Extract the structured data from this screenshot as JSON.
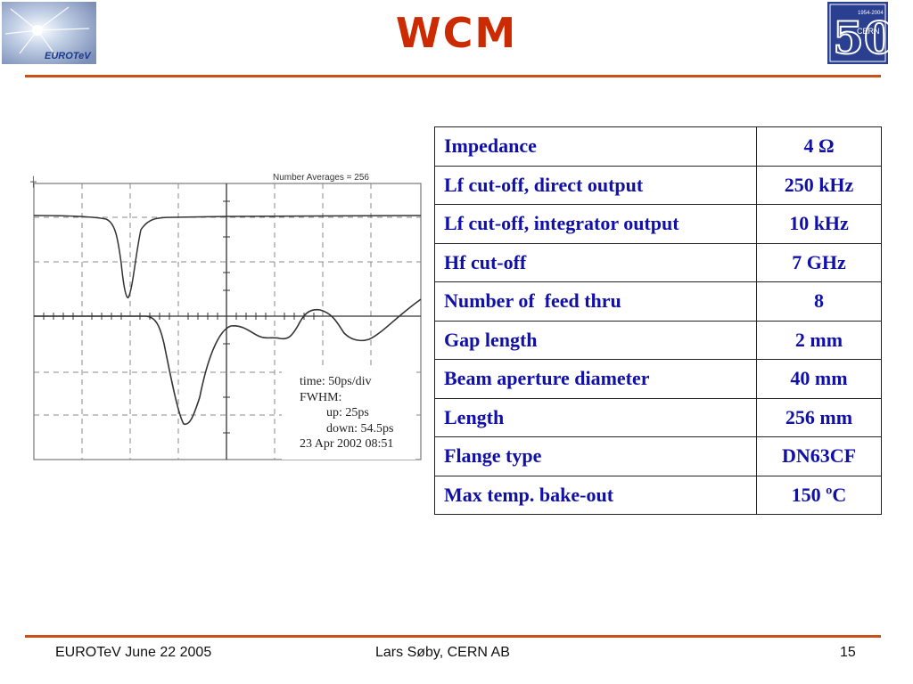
{
  "header": {
    "title": "WCM",
    "left_logo_text": "EUROTeV",
    "right_logo_text": "CERN",
    "right_logo_years": "1954-2004",
    "right_logo_number": "50"
  },
  "scope": {
    "annotation": "Number Averages = 256",
    "caption": {
      "time": "time: 50ps/div",
      "fwhm": "FWHM:",
      "up": "up: 25ps",
      "down": "down: 54.5ps",
      "date": "23 Apr 2002 08:51"
    }
  },
  "specs": [
    {
      "param": "Impedance",
      "value": "4 Ω"
    },
    {
      "param": "Lf cut-off, direct output",
      "value": "250 kHz"
    },
    {
      "param": "Lf cut-off, integrator output",
      "value": "10 kHz"
    },
    {
      "param": "Hf cut-off",
      "value": "7 GHz"
    },
    {
      "param": "Number of  feed thru",
      "value": "8"
    },
    {
      "param": "Gap length",
      "value": "2 mm"
    },
    {
      "param": "Beam aperture diameter",
      "value": "40 mm"
    },
    {
      "param": "Length",
      "value": "256 mm"
    },
    {
      "param": "Flange type",
      "value": "DN63CF"
    },
    {
      "param": "Max temp. bake-out",
      "value": "150 ºC"
    }
  ],
  "footer": {
    "left": "EUROTeV June 22 2005",
    "center": "Lars Søby, CERN AB",
    "page": "15"
  },
  "colors": {
    "title": "#cc2a00",
    "rule": "#c8501a",
    "table_text": "#1010a8",
    "logo_blue": "#2a3f8f"
  }
}
